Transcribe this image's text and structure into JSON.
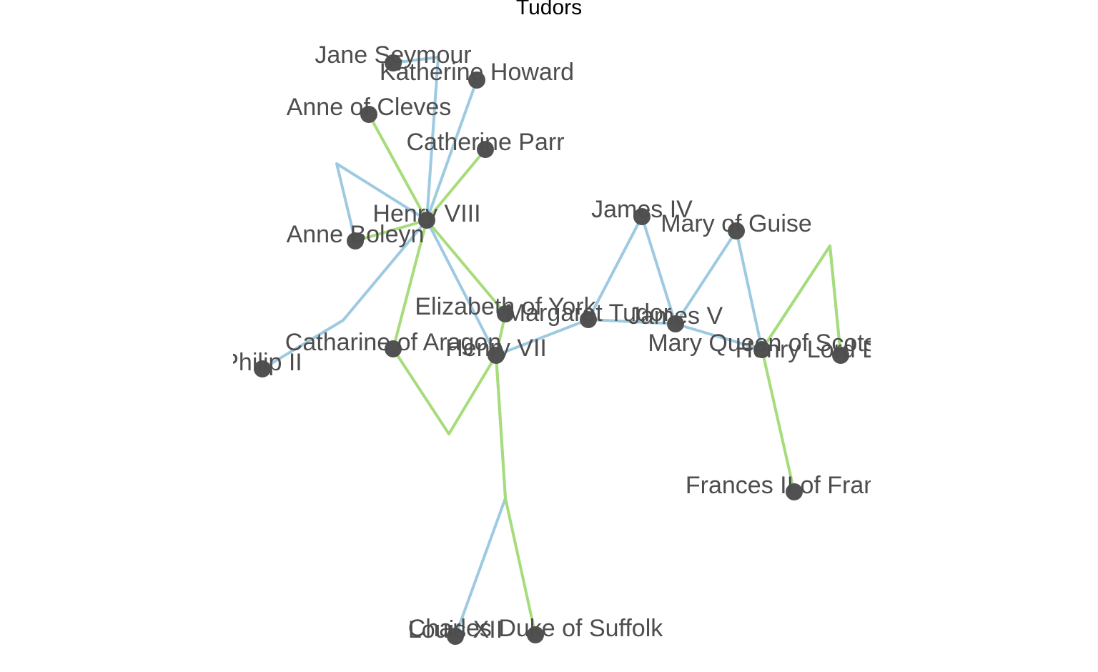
{
  "title": "Tudors",
  "colors": {
    "edge_blue": "#9ecae1",
    "edge_green": "#a6dc7a",
    "node": "#515151",
    "label": "#4d4d4d",
    "title": "#000000"
  },
  "nodes": [
    {
      "id": "henry8",
      "label": "Henry VIII"
    },
    {
      "id": "jane",
      "label": "Jane Seymour"
    },
    {
      "id": "katherine",
      "label": "Katherine Howard"
    },
    {
      "id": "cleves",
      "label": "Anne of Cleves"
    },
    {
      "id": "parr",
      "label": "Catherine Parr"
    },
    {
      "id": "boleyn",
      "label": "Anne Boleyn"
    },
    {
      "id": "aragon",
      "label": "Catharine of Aragon"
    },
    {
      "id": "philip",
      "label": "Philip II"
    },
    {
      "id": "henry7",
      "label": "Henry VII"
    },
    {
      "id": "eyork",
      "label": "Elizabeth of York"
    },
    {
      "id": "margaret",
      "label": "Margaret Tudor"
    },
    {
      "id": "james4",
      "label": "James IV"
    },
    {
      "id": "james5",
      "label": "James V"
    },
    {
      "id": "guise",
      "label": "Mary of Guise"
    },
    {
      "id": "mqs",
      "label": "Mary Queen of Scots"
    },
    {
      "id": "darnley",
      "label": "Henry Lord Darnley"
    },
    {
      "id": "francis",
      "label": "Frances II of France"
    },
    {
      "id": "louis",
      "label": "Louis XII"
    },
    {
      "id": "charles",
      "label": "Charles Duke of Suffolk"
    }
  ],
  "edges": [
    {
      "from": "henry8",
      "to": "jane",
      "type": "parent"
    },
    {
      "from": "henry8",
      "to": "katherine",
      "type": "parent"
    },
    {
      "from": "henry8",
      "to": "cleves",
      "type": "marriage"
    },
    {
      "from": "henry8",
      "to": "parr",
      "type": "marriage"
    },
    {
      "from": "henry8",
      "to": "boleyn",
      "type": "marriage"
    },
    {
      "from": "henry8",
      "to": "boleyn",
      "type": "parent"
    },
    {
      "from": "henry8",
      "to": "aragon",
      "type": "marriage"
    },
    {
      "from": "henry8",
      "to": "philip",
      "type": "parent"
    },
    {
      "from": "henry8",
      "to": "henry7",
      "type": "parent"
    },
    {
      "from": "henry8",
      "to": "eyork",
      "type": "marriage"
    },
    {
      "from": "aragon",
      "to": "henry7",
      "type": "marriage"
    },
    {
      "from": "henry7",
      "to": "eyork",
      "type": "marriage"
    },
    {
      "from": "henry7",
      "to": "margaret",
      "type": "parent"
    },
    {
      "from": "henry7",
      "to": "louis",
      "type": "parent"
    },
    {
      "from": "henry7",
      "to": "charles",
      "type": "marriage"
    },
    {
      "from": "margaret",
      "to": "james4",
      "type": "parent"
    },
    {
      "from": "margaret",
      "to": "james5",
      "type": "parent"
    },
    {
      "from": "james4",
      "to": "james5",
      "type": "parent"
    },
    {
      "from": "james5",
      "to": "guise",
      "type": "parent"
    },
    {
      "from": "james5",
      "to": "mqs",
      "type": "parent"
    },
    {
      "from": "guise",
      "to": "mqs",
      "type": "parent"
    },
    {
      "from": "mqs",
      "to": "darnley",
      "type": "parent"
    },
    {
      "from": "mqs",
      "to": "darnley",
      "type": "marriage"
    },
    {
      "from": "mqs",
      "to": "francis",
      "type": "marriage"
    }
  ]
}
